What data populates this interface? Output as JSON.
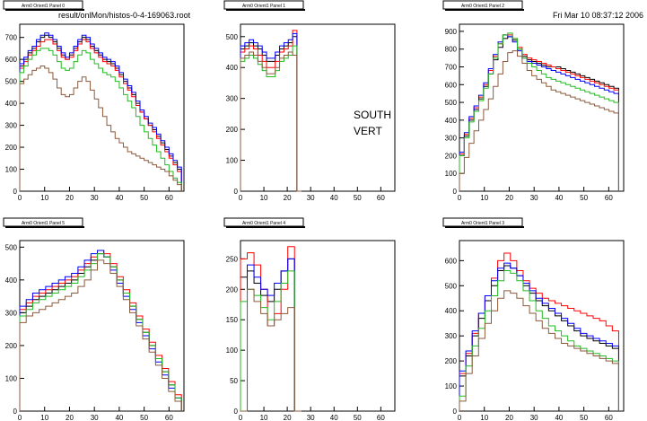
{
  "header": {
    "file_label": "result/onlMon/histos-0-4-169063.root",
    "timestamp": "Fri Mar 10 08:37:12 2006"
  },
  "annotation": {
    "line1": "SOUTH",
    "line2": "VERT"
  },
  "colors": {
    "c1": "#000000",
    "c2": "#ff0000",
    "c3": "#0000ff",
    "c4": "#22bb22",
    "c5": "#8b5a3c"
  },
  "chart_data": [
    {
      "type": "histogram",
      "title": "Arm0 Orient1 Panel 0",
      "xlim": [
        0,
        66
      ],
      "ylim": [
        0,
        760
      ],
      "xticks": [
        0,
        10,
        20,
        30,
        40,
        50,
        60
      ],
      "yticks": [
        0,
        100,
        200,
        300,
        400,
        500,
        600,
        700
      ],
      "series": [
        {
          "color": "#000000",
          "values": [
            570,
            600,
            630,
            650,
            680,
            700,
            710,
            700,
            680,
            650,
            620,
            600,
            620,
            650,
            680,
            700,
            690,
            660,
            640,
            620,
            600,
            590,
            580,
            560,
            530,
            500,
            470,
            440,
            400,
            360,
            330,
            300,
            280,
            250,
            220,
            190,
            160,
            130,
            100
          ]
        },
        {
          "color": "#ff0000",
          "values": [
            560,
            590,
            620,
            640,
            660,
            680,
            690,
            690,
            670,
            640,
            610,
            600,
            610,
            640,
            670,
            690,
            680,
            650,
            630,
            610,
            590,
            580,
            570,
            550,
            520,
            490,
            460,
            430,
            390,
            360,
            330,
            300,
            270,
            240,
            210,
            180,
            150,
            120,
            90
          ]
        },
        {
          "color": "#0000ff",
          "values": [
            580,
            610,
            640,
            660,
            690,
            710,
            720,
            710,
            690,
            660,
            630,
            610,
            630,
            660,
            690,
            710,
            700,
            670,
            650,
            630,
            610,
            600,
            590,
            570,
            540,
            510,
            480,
            450,
            410,
            370,
            340,
            310,
            290,
            260,
            230,
            200,
            170,
            140,
            110
          ]
        },
        {
          "color": "#22bb22",
          "values": [
            540,
            570,
            600,
            620,
            640,
            650,
            650,
            640,
            620,
            590,
            560,
            550,
            560,
            590,
            620,
            640,
            630,
            600,
            580,
            560,
            540,
            530,
            520,
            500,
            470,
            440,
            410,
            380,
            340,
            300,
            270,
            240,
            210,
            180,
            150,
            120,
            90,
            60,
            40
          ]
        },
        {
          "color": "#8b5a3c",
          "values": [
            490,
            510,
            530,
            550,
            560,
            570,
            560,
            540,
            510,
            470,
            440,
            430,
            440,
            470,
            500,
            520,
            500,
            460,
            420,
            380,
            340,
            300,
            270,
            240,
            220,
            200,
            180,
            170,
            160,
            150,
            140,
            130,
            120,
            110,
            100,
            90,
            70,
            50,
            30
          ]
        }
      ]
    },
    {
      "type": "histogram",
      "title": "Arm0 Orient1 Panel 1",
      "xlim": [
        0,
        66
      ],
      "ylim": [
        0,
        540
      ],
      "xticks": [
        0,
        10,
        20,
        30,
        40,
        50,
        60
      ],
      "yticks": [
        0,
        100,
        200,
        300,
        400,
        500
      ],
      "series": [
        {
          "color": "#000000",
          "values": [
            460,
            470,
            480,
            470,
            460,
            440,
            420,
            420,
            440,
            460,
            470,
            480,
            500,
            0
          ]
        },
        {
          "color": "#ff0000",
          "values": [
            450,
            460,
            470,
            460,
            440,
            420,
            400,
            400,
            420,
            450,
            460,
            470,
            520,
            0
          ]
        },
        {
          "color": "#0000ff",
          "values": [
            470,
            480,
            490,
            480,
            470,
            450,
            430,
            430,
            450,
            470,
            480,
            490,
            510,
            0
          ]
        },
        {
          "color": "#22bb22",
          "values": [
            420,
            430,
            440,
            430,
            410,
            390,
            370,
            370,
            390,
            420,
            430,
            440,
            470,
            0
          ]
        },
        {
          "color": "#8b5a3c",
          "values": [
            430,
            440,
            450,
            440,
            420,
            400,
            380,
            380,
            400,
            430,
            440,
            450,
            440,
            0
          ]
        }
      ]
    },
    {
      "type": "histogram",
      "title": "Arm0 Orient1 Panel 2",
      "xlim": [
        0,
        66
      ],
      "ylim": [
        0,
        940
      ],
      "xticks": [
        0,
        10,
        20,
        30,
        40,
        50,
        60
      ],
      "yticks": [
        0,
        100,
        200,
        300,
        400,
        500,
        600,
        700,
        800,
        900
      ],
      "series": [
        {
          "color": "#000000",
          "values": [
            200,
            310,
            400,
            460,
            520,
            590,
            660,
            740,
            810,
            860,
            870,
            850,
            800,
            760,
            740,
            730,
            720,
            710,
            700,
            700,
            700,
            690,
            680,
            670,
            660,
            650,
            640,
            630,
            620,
            610,
            600,
            590,
            580
          ]
        },
        {
          "color": "#ff0000",
          "values": [
            210,
            320,
            410,
            470,
            530,
            600,
            680,
            760,
            830,
            880,
            880,
            860,
            810,
            770,
            750,
            740,
            730,
            720,
            710,
            700,
            690,
            680,
            670,
            660,
            650,
            640,
            630,
            620,
            610,
            600,
            590,
            580,
            570
          ]
        },
        {
          "color": "#0000ff",
          "values": [
            220,
            330,
            420,
            480,
            540,
            610,
            690,
            770,
            840,
            880,
            870,
            840,
            790,
            750,
            730,
            720,
            710,
            700,
            690,
            680,
            670,
            660,
            650,
            640,
            630,
            620,
            610,
            600,
            590,
            580,
            570,
            560,
            550
          ]
        },
        {
          "color": "#22bb22",
          "values": [
            200,
            300,
            390,
            450,
            510,
            580,
            660,
            750,
            830,
            880,
            890,
            860,
            800,
            750,
            720,
            700,
            680,
            660,
            640,
            630,
            620,
            610,
            600,
            590,
            580,
            570,
            560,
            550,
            540,
            530,
            520,
            510,
            500
          ]
        },
        {
          "color": "#8b5a3c",
          "values": [
            100,
            190,
            270,
            340,
            400,
            460,
            520,
            590,
            660,
            730,
            780,
            790,
            760,
            720,
            680,
            650,
            630,
            610,
            590,
            570,
            560,
            550,
            540,
            530,
            520,
            510,
            500,
            490,
            480,
            470,
            460,
            450,
            440
          ]
        }
      ]
    },
    {
      "type": "histogram",
      "title": "Arm0 Orient1 Panel 5",
      "xlim": [
        0,
        66
      ],
      "ylim": [
        0,
        520
      ],
      "xticks": [
        0,
        10,
        20,
        30,
        40,
        50,
        60
      ],
      "yticks": [
        0,
        100,
        200,
        300,
        400,
        500
      ],
      "series": [
        {
          "color": "#000000",
          "values": [
            300,
            320,
            340,
            350,
            360,
            370,
            380,
            390,
            400,
            420,
            440,
            460,
            480,
            470,
            440,
            400,
            360,
            320,
            280,
            240,
            200,
            160,
            120,
            80,
            40
          ]
        },
        {
          "color": "#ff0000",
          "values": [
            310,
            330,
            350,
            360,
            370,
            380,
            390,
            400,
            410,
            430,
            450,
            470,
            490,
            480,
            450,
            410,
            370,
            330,
            290,
            250,
            210,
            170,
            130,
            90,
            50
          ]
        },
        {
          "color": "#0000ff",
          "values": [
            320,
            340,
            360,
            370,
            380,
            390,
            400,
            410,
            420,
            440,
            460,
            480,
            490,
            470,
            430,
            390,
            350,
            310,
            270,
            230,
            190,
            150,
            110,
            70,
            40
          ]
        },
        {
          "color": "#22bb22",
          "values": [
            290,
            310,
            330,
            340,
            350,
            360,
            370,
            380,
            390,
            410,
            430,
            450,
            480,
            470,
            440,
            400,
            360,
            320,
            280,
            240,
            200,
            160,
            120,
            80,
            40
          ]
        },
        {
          "color": "#8b5a3c",
          "values": [
            270,
            290,
            300,
            310,
            320,
            330,
            340,
            350,
            360,
            380,
            400,
            430,
            460,
            450,
            420,
            380,
            340,
            300,
            260,
            220,
            180,
            140,
            100,
            60,
            30
          ]
        }
      ]
    },
    {
      "type": "histogram",
      "title": "Arm0 Orient1 Panel 4",
      "xlim": [
        0,
        66
      ],
      "ylim": [
        0,
        280
      ],
      "xticks": [
        0,
        10,
        20,
        30,
        40,
        50,
        60
      ],
      "yticks": [
        0,
        50,
        100,
        150,
        200,
        250
      ],
      "series": [
        {
          "color": "#000000",
          "values": [
            220,
            230,
            210,
            190,
            180,
            200,
            230,
            250,
            0
          ]
        },
        {
          "color": "#ff0000",
          "values": [
            250,
            260,
            240,
            200,
            140,
            160,
            200,
            270,
            0
          ]
        },
        {
          "color": "#0000ff",
          "values": [
            0,
            240,
            220,
            200,
            190,
            210,
            230,
            250,
            0
          ]
        },
        {
          "color": "#22bb22",
          "values": [
            180,
            200,
            190,
            170,
            150,
            180,
            210,
            230,
            0
          ]
        },
        {
          "color": "#8b5a3c",
          "values": [
            0,
            200,
            180,
            160,
            140,
            150,
            160,
            170,
            0
          ]
        }
      ]
    },
    {
      "type": "histogram",
      "title": "Arm0 Orient1 Panel 3",
      "xlim": [
        0,
        66
      ],
      "ylim": [
        0,
        680
      ],
      "xticks": [
        0,
        10,
        20,
        30,
        40,
        50,
        60
      ],
      "yticks": [
        0,
        100,
        200,
        300,
        400,
        500,
        600
      ],
      "series": [
        {
          "color": "#000000",
          "values": [
            140,
            220,
            300,
            370,
            440,
            500,
            560,
            580,
            570,
            540,
            500,
            470,
            440,
            420,
            400,
            380,
            360,
            340,
            320,
            300,
            290,
            280,
            270,
            260,
            250
          ]
        },
        {
          "color": "#ff0000",
          "values": [
            150,
            230,
            310,
            390,
            460,
            530,
            600,
            630,
            600,
            560,
            520,
            490,
            470,
            450,
            440,
            430,
            420,
            410,
            400,
            390,
            380,
            370,
            360,
            340,
            320
          ]
        },
        {
          "color": "#0000ff",
          "values": [
            160,
            240,
            320,
            390,
            460,
            520,
            570,
            590,
            570,
            540,
            510,
            480,
            450,
            430,
            410,
            390,
            370,
            350,
            330,
            310,
            300,
            290,
            280,
            270,
            260
          ]
        },
        {
          "color": "#22bb22",
          "values": [
            60,
            180,
            260,
            330,
            400,
            460,
            520,
            560,
            550,
            520,
            480,
            440,
            400,
            370,
            340,
            320,
            300,
            280,
            260,
            250,
            240,
            230,
            220,
            210,
            200
          ]
        },
        {
          "color": "#8b5a3c",
          "values": [
            40,
            150,
            220,
            290,
            350,
            400,
            450,
            480,
            470,
            450,
            420,
            390,
            360,
            330,
            310,
            290,
            270,
            260,
            250,
            240,
            230,
            220,
            210,
            200,
            190
          ]
        }
      ]
    }
  ]
}
